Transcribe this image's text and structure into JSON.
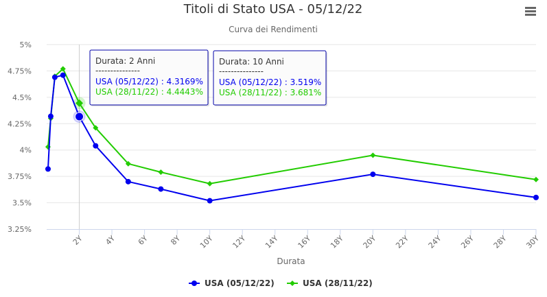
{
  "chart_data": {
    "type": "line",
    "title": "Titoli di Stato USA - 05/12/22",
    "subtitle": "Curva dei Rendimenti",
    "xlabel": "Durata",
    "ylabel": "",
    "xlim": [
      0,
      30
    ],
    "ylim": [
      3.25,
      5
    ],
    "x_ticks": [
      2,
      4,
      6,
      8,
      10,
      12,
      14,
      16,
      18,
      20,
      22,
      24,
      26,
      28,
      30
    ],
    "x_tick_labels": [
      "2Y",
      "4Y",
      "6Y",
      "8Y",
      "10Y",
      "12Y",
      "14Y",
      "16Y",
      "18Y",
      "20Y",
      "22Y",
      "24Y",
      "26Y",
      "28Y",
      "30Y"
    ],
    "y_ticks": [
      3.25,
      3.5,
      3.75,
      4,
      4.25,
      4.5,
      4.75,
      5
    ],
    "y_tick_labels": [
      "3.25%",
      "3.5%",
      "3.75%",
      "4%",
      "4.25%",
      "4.5%",
      "4.75%",
      "5%"
    ],
    "grid": true,
    "legend_position": "bottom-center",
    "crosshair_x": 2,
    "highlight_x": 2,
    "series": [
      {
        "name": "USA (05/12/22)",
        "color": "#0000ee",
        "marker": "circle",
        "x": [
          0.083,
          0.25,
          0.5,
          1,
          2,
          3,
          5,
          7,
          10,
          20,
          30
        ],
        "y": [
          3.82,
          4.32,
          4.69,
          4.71,
          4.3169,
          4.04,
          3.7,
          3.63,
          3.519,
          3.77,
          3.55
        ]
      },
      {
        "name": "USA (28/11/22)",
        "color": "#22cc00",
        "marker": "diamond",
        "x": [
          0.083,
          0.25,
          0.5,
          1,
          2,
          3,
          5,
          7,
          10,
          20,
          30
        ],
        "y": [
          4.03,
          4.3,
          4.7,
          4.77,
          4.4443,
          4.21,
          3.87,
          3.79,
          3.681,
          3.95,
          3.72
        ]
      }
    ],
    "tooltips": [
      {
        "header": "Durata: 2 Anni",
        "separator": "---------------",
        "lines": [
          {
            "text": "USA (05/12/22) : 4.3169%",
            "color": "#0000ee"
          },
          {
            "text": "USA (28/11/22) : 4.4443%",
            "color": "#22cc00"
          }
        ]
      },
      {
        "header": "Durata: 10 Anni",
        "separator": "---------------",
        "lines": [
          {
            "text": "USA (05/12/22) : 3.519%",
            "color": "#0000ee"
          },
          {
            "text": "USA (28/11/22) : 3.681%",
            "color": "#22cc00"
          }
        ]
      }
    ]
  },
  "menu": {
    "icon": "hamburger-menu-icon"
  }
}
